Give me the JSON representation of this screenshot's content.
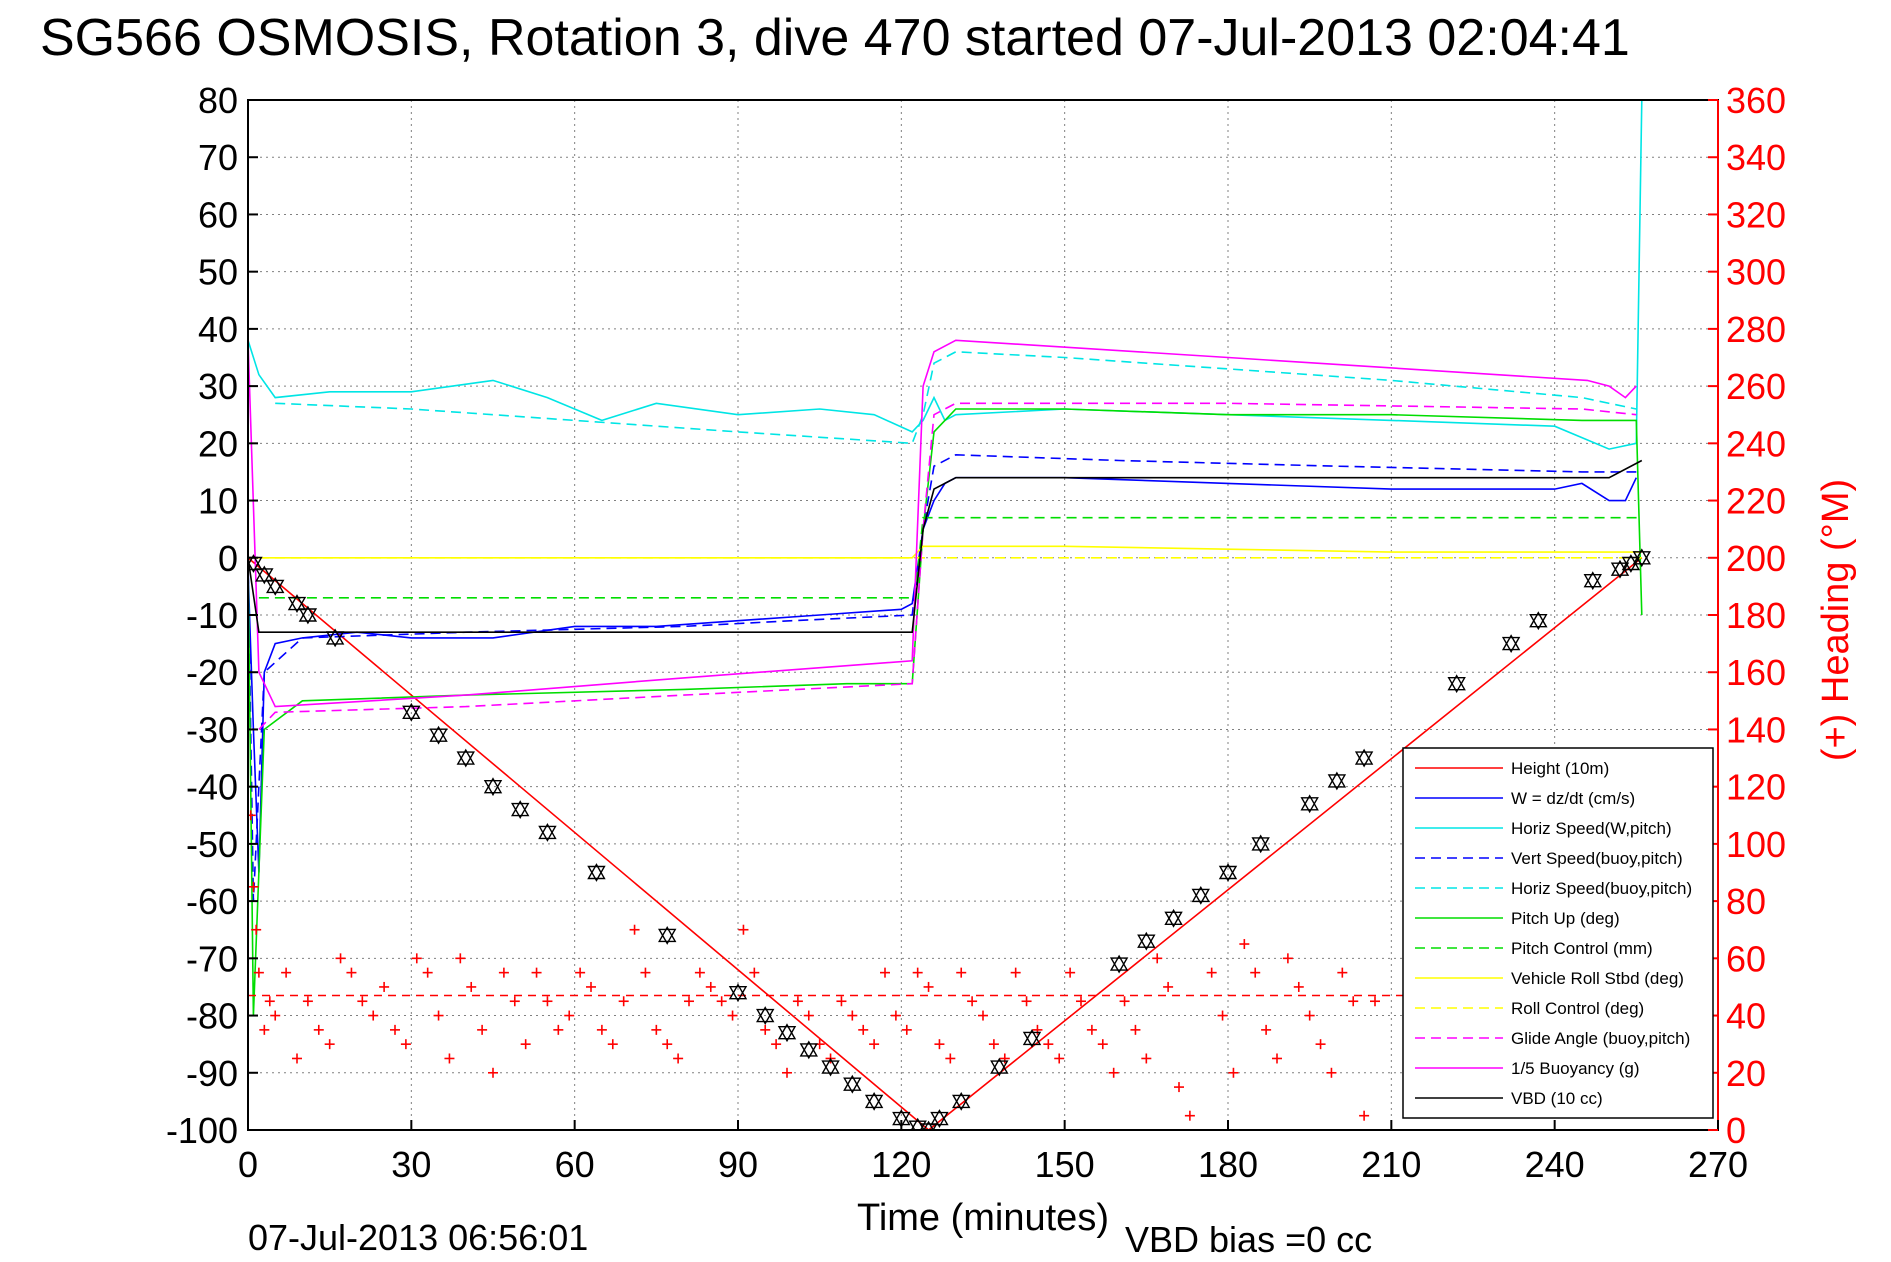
{
  "chart_data": {
    "type": "line",
    "title": "SG566 OSMOSIS, Rotation 3, dive 470 started 07-Jul-2013 02:04:41",
    "xlabel": "Time (minutes)",
    "ylabel_right": "(+) Heading (°M)",
    "footer_left": "07-Jul-2013 06:56:01",
    "footer_right": "VBD bias =0 cc",
    "xlim": [
      0,
      270
    ],
    "ylim_left": [
      -100,
      80
    ],
    "ylim_right": [
      0,
      360
    ],
    "xticks": [
      "0",
      "30",
      "60",
      "90",
      "120",
      "150",
      "180",
      "210",
      "240",
      "270"
    ],
    "yticks_left": [
      "80",
      "70",
      "60",
      "50",
      "40",
      "30",
      "20",
      "10",
      "0",
      "-10",
      "-20",
      "-30",
      "-40",
      "-50",
      "-60",
      "-70",
      "-80",
      "-90",
      "-100"
    ],
    "yticks_right": [
      "360",
      "340",
      "320",
      "300",
      "280",
      "260",
      "240",
      "220",
      "200",
      "180",
      "160",
      "140",
      "120",
      "100",
      "80",
      "60",
      "40",
      "20",
      "0"
    ],
    "grid": true,
    "legend_position": "bottom-right",
    "colors": {
      "axis": "#000000",
      "right_axis": "#ff0000",
      "grid": "#808080",
      "red": "#ff0000",
      "blue": "#0000ff",
      "cyan": "#00e5e5",
      "green": "#00dd00",
      "yellow": "#ffff00",
      "magenta": "#ff00ff",
      "black": "#000000"
    },
    "series": [
      {
        "name": "Height (10m)",
        "color": "#ff0000",
        "style": "solid",
        "x": [
          0,
          125,
          256
        ],
        "y": [
          0,
          -100,
          0
        ]
      },
      {
        "name": "W = dz/dt (cm/s)",
        "color": "#0000ff",
        "style": "solid",
        "x": [
          0,
          1,
          2,
          3,
          5,
          10,
          20,
          30,
          45,
          60,
          75,
          90,
          105,
          120,
          122,
          124,
          126,
          128,
          130,
          150,
          180,
          210,
          240,
          245,
          250,
          253,
          255
        ],
        "y": [
          -2,
          -30,
          -55,
          -20,
          -15,
          -14,
          -13,
          -14,
          -14,
          -12,
          -12,
          -11,
          -10,
          -9,
          -8,
          5,
          10,
          13,
          14,
          14,
          13,
          12,
          12,
          13,
          10,
          10,
          14
        ]
      },
      {
        "name": "Horiz Speed(W,pitch)",
        "color": "#00e5e5",
        "style": "solid",
        "x": [
          0,
          2,
          5,
          15,
          30,
          45,
          55,
          65,
          75,
          90,
          105,
          115,
          122,
          124,
          126,
          128,
          130,
          150,
          180,
          210,
          240,
          245,
          250,
          255,
          256
        ],
        "y": [
          38,
          32,
          28,
          29,
          29,
          31,
          28,
          24,
          27,
          25,
          26,
          25,
          22,
          24,
          28,
          24,
          25,
          26,
          25,
          24,
          23,
          21,
          19,
          20,
          80
        ]
      },
      {
        "name": "Vert Speed(buoy,pitch)",
        "color": "#0000ff",
        "style": "dashed",
        "x": [
          0,
          1,
          3,
          10,
          40,
          80,
          100,
          122,
          124,
          126,
          130,
          160,
          200,
          245,
          255
        ],
        "y": [
          0,
          -60,
          -20,
          -14,
          -13,
          -12,
          -11,
          -10,
          5,
          16,
          18,
          17,
          16,
          15,
          15
        ]
      },
      {
        "name": "Horiz Speed(buoy,pitch)",
        "color": "#00e5e5",
        "style": "dashed",
        "x": [
          5,
          30,
          60,
          90,
          122,
          124,
          126,
          130,
          150,
          180,
          210,
          245,
          255
        ],
        "y": [
          27,
          26,
          24,
          22,
          20,
          25,
          34,
          36,
          35,
          33,
          31,
          28,
          26
        ]
      },
      {
        "name": "Pitch Up (deg)",
        "color": "#00dd00",
        "style": "solid",
        "x": [
          0,
          1,
          3,
          10,
          40,
          80,
          110,
          122,
          124,
          126,
          130,
          150,
          180,
          210,
          245,
          255,
          256
        ],
        "y": [
          0,
          -80,
          -30,
          -25,
          -24,
          -23,
          -22,
          -22,
          5,
          22,
          26,
          26,
          25,
          25,
          24,
          24,
          -10
        ]
      },
      {
        "name": "Pitch Control (mm)",
        "color": "#00dd00",
        "style": "dashed",
        "x": [
          2,
          122,
          122.5,
          124,
          256
        ],
        "y": [
          -7,
          -7,
          -7,
          7,
          7
        ]
      },
      {
        "name": "Vehicle Roll Stbd (deg)",
        "color": "#ffff00",
        "style": "solid",
        "x": [
          0,
          5,
          60,
          122,
          124,
          150,
          210,
          256
        ],
        "y": [
          0,
          0,
          0,
          0,
          2,
          2,
          1,
          1
        ]
      },
      {
        "name": "Roll Control (deg)",
        "color": "#ffff00",
        "style": "dashed",
        "x": [
          2,
          122,
          124,
          256
        ],
        "y": [
          0,
          0,
          0,
          0
        ]
      },
      {
        "name": "Glide Angle (buoy,pitch)",
        "color": "#ff00ff",
        "style": "dashed",
        "x": [
          2,
          5,
          40,
          80,
          122,
          124,
          126,
          130,
          180,
          245,
          255
        ],
        "y": [
          -30,
          -27,
          -26,
          -24,
          -22,
          5,
          25,
          27,
          27,
          26,
          25
        ]
      },
      {
        "name": "1/5 Buoyancy (g)",
        "color": "#ff00ff",
        "style": "solid",
        "x": [
          0,
          2,
          5,
          40,
          80,
          122,
          124,
          126,
          130,
          180,
          246,
          250,
          253,
          255
        ],
        "y": [
          38,
          -20,
          -26,
          -24,
          -21,
          -18,
          30,
          36,
          38,
          35,
          31,
          30,
          28,
          30
        ]
      },
      {
        "name": "VBD (10 cc)",
        "color": "#000000",
        "style": "solid",
        "x": [
          0,
          2,
          122,
          124,
          126,
          130,
          250,
          256
        ],
        "y": [
          0,
          -13,
          -13,
          5,
          12,
          14,
          14,
          17
        ]
      }
    ],
    "height_markers": {
      "color": "#000000",
      "x": [
        1,
        3,
        5,
        9,
        11,
        16,
        30,
        35,
        40,
        45,
        50,
        55,
        64,
        77,
        90,
        95,
        99,
        103,
        107,
        111,
        115,
        120,
        123,
        125,
        127,
        131,
        138,
        144,
        160,
        165,
        170,
        175,
        180,
        186,
        195,
        200,
        205,
        222,
        232,
        237,
        247,
        252,
        254,
        256
      ],
      "y": [
        -1,
        -3,
        -5,
        -8,
        -10,
        -14,
        -27,
        -31,
        -35,
        -40,
        -44,
        -48,
        -55,
        -66,
        -76,
        -80,
        -83,
        -86,
        -89,
        -92,
        -95,
        -98,
        -99.5,
        -100,
        -98,
        -95,
        -89,
        -84,
        -71,
        -67,
        -63,
        -59,
        -55,
        -50,
        -43,
        -39,
        -35,
        -22,
        -15,
        -11,
        -4,
        -2,
        -1,
        0
      ]
    },
    "heading_series": {
      "name": "(+) Heading (°M)",
      "axis": "right",
      "marker": "+",
      "color": "#ff0000",
      "mean": 47,
      "x": [
        0.5,
        1,
        1.5,
        2,
        3,
        4,
        5,
        7,
        9,
        11,
        13,
        15,
        17,
        19,
        21,
        23,
        25,
        27,
        29,
        31,
        33,
        35,
        37,
        39,
        41,
        43,
        45,
        47,
        49,
        51,
        53,
        55,
        57,
        59,
        61,
        63,
        65,
        67,
        69,
        71,
        73,
        75,
        77,
        79,
        81,
        83,
        85,
        87,
        89,
        91,
        93,
        95,
        97,
        99,
        101,
        103,
        105,
        107,
        109,
        111,
        113,
        115,
        117,
        119,
        121,
        123,
        125,
        127,
        129,
        131,
        133,
        135,
        137,
        139,
        141,
        143,
        145,
        147,
        149,
        151,
        153,
        155,
        157,
        159,
        161,
        163,
        165,
        167,
        169,
        171,
        173,
        174,
        175,
        177,
        179,
        181,
        183,
        185,
        187,
        189,
        191,
        193,
        195,
        197,
        199,
        201,
        203,
        205,
        207
      ],
      "y": [
        110,
        85,
        70,
        55,
        35,
        45,
        40,
        55,
        25,
        45,
        35,
        30,
        60,
        55,
        45,
        40,
        50,
        35,
        30,
        60,
        55,
        40,
        25,
        60,
        50,
        35,
        20,
        55,
        45,
        30,
        55,
        45,
        35,
        40,
        55,
        50,
        35,
        30,
        45,
        70,
        55,
        35,
        30,
        25,
        45,
        55,
        50,
        45,
        40,
        70,
        55,
        35,
        30,
        20,
        45,
        40,
        30,
        25,
        45,
        40,
        35,
        30,
        55,
        40,
        35,
        55,
        50,
        30,
        25,
        55,
        45,
        40,
        30,
        25,
        55,
        45,
        35,
        30,
        25,
        55,
        45,
        35,
        30,
        20,
        45,
        35,
        25,
        60,
        50,
        15,
        5,
        375,
        365,
        55,
        40,
        20,
        65,
        55,
        35,
        25,
        60,
        50,
        40,
        30,
        20,
        55,
        45,
        5,
        45
      ]
    },
    "legend": [
      "Height (10m)",
      "W = dz/dt (cm/s)",
      "Horiz Speed(W,pitch)",
      "Vert Speed(buoy,pitch)",
      "Horiz Speed(buoy,pitch)",
      "Pitch Up (deg)",
      "Pitch Control (mm)",
      "Vehicle Roll Stbd (deg)",
      "Roll Control (deg)",
      "Glide Angle (buoy,pitch)",
      "1/5 Buoyancy (g)",
      "VBD (10 cc)"
    ]
  }
}
